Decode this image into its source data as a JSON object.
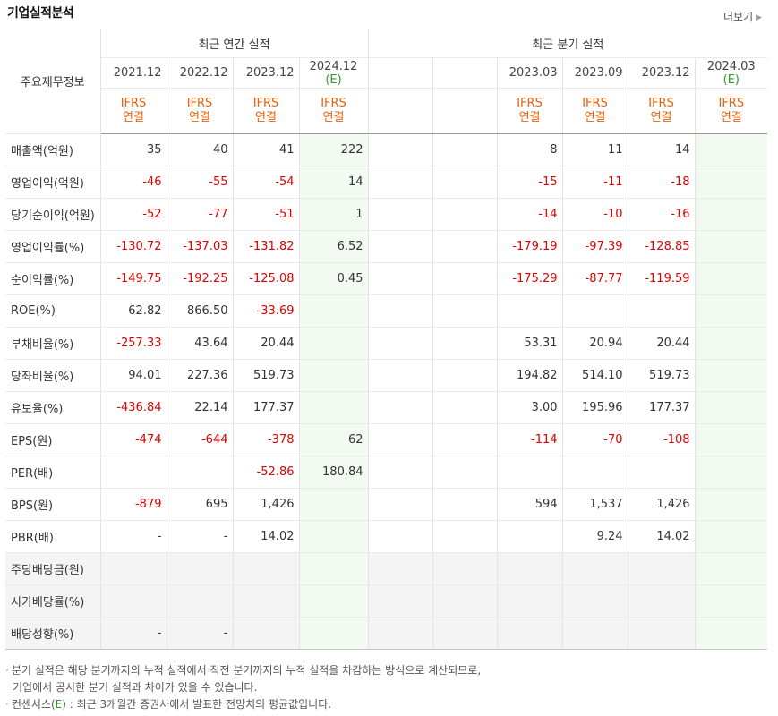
{
  "title": "기업실적분석",
  "more_link": "더보기",
  "row_header_label": "주요재무정보",
  "group_annual": "최근 연간 실적",
  "group_quarter": "최근 분기 실적",
  "annual_periods": [
    "2021.12",
    "2022.12",
    "2023.12",
    "2024.12"
  ],
  "annual_est_mark": "(E)",
  "quarter_periods": [
    "",
    "",
    "2023.03",
    "2023.09",
    "2023.12",
    "2024.03"
  ],
  "quarter_est_mark": "(E)",
  "ifrs_label": "IFRS",
  "ifrs_sub": "연결",
  "rows": [
    {
      "label": "매출액(억원)",
      "annual": [
        "35",
        "40",
        "41",
        "222"
      ],
      "quarter": [
        "",
        "",
        "8",
        "11",
        "14",
        ""
      ]
    },
    {
      "label": "영업이익(억원)",
      "annual": [
        "-46",
        "-55",
        "-54",
        "14"
      ],
      "quarter": [
        "",
        "",
        "-15",
        "-11",
        "-18",
        ""
      ]
    },
    {
      "label": "당기순이익(억원)",
      "annual": [
        "-52",
        "-77",
        "-51",
        "1"
      ],
      "quarter": [
        "",
        "",
        "-14",
        "-10",
        "-16",
        ""
      ]
    },
    {
      "label": "영업이익률(%)",
      "annual": [
        "-130.72",
        "-137.03",
        "-131.82",
        "6.52"
      ],
      "quarter": [
        "",
        "",
        "-179.19",
        "-97.39",
        "-128.85",
        ""
      ]
    },
    {
      "label": "순이익률(%)",
      "annual": [
        "-149.75",
        "-192.25",
        "-125.08",
        "0.45"
      ],
      "quarter": [
        "",
        "",
        "-175.29",
        "-87.77",
        "-119.59",
        ""
      ]
    },
    {
      "label": "ROE(%)",
      "annual": [
        "62.82",
        "866.50",
        "-33.69",
        ""
      ],
      "quarter": [
        "",
        "",
        "",
        "",
        "",
        ""
      ]
    },
    {
      "label": "부채비율(%)",
      "annual": [
        "-257.33",
        "43.64",
        "20.44",
        ""
      ],
      "quarter": [
        "",
        "",
        "53.31",
        "20.94",
        "20.44",
        ""
      ]
    },
    {
      "label": "당좌비율(%)",
      "annual": [
        "94.01",
        "227.36",
        "519.73",
        ""
      ],
      "quarter": [
        "",
        "",
        "194.82",
        "514.10",
        "519.73",
        ""
      ]
    },
    {
      "label": "유보율(%)",
      "annual": [
        "-436.84",
        "22.14",
        "177.37",
        ""
      ],
      "quarter": [
        "",
        "",
        "3.00",
        "195.96",
        "177.37",
        ""
      ]
    },
    {
      "label": "EPS(원)",
      "annual": [
        "-474",
        "-644",
        "-378",
        "62"
      ],
      "quarter": [
        "",
        "",
        "-114",
        "-70",
        "-108",
        ""
      ]
    },
    {
      "label": "PER(배)",
      "annual": [
        "",
        "",
        "-52.86",
        "180.84"
      ],
      "quarter": [
        "",
        "",
        "",
        "",
        "",
        ""
      ]
    },
    {
      "label": "BPS(원)",
      "annual": [
        "-879",
        "695",
        "1,426",
        ""
      ],
      "quarter": [
        "",
        "",
        "594",
        "1,537",
        "1,426",
        ""
      ]
    },
    {
      "label": "PBR(배)",
      "annual": [
        "-",
        "-",
        "14.02",
        ""
      ],
      "quarter": [
        "",
        "",
        "",
        "9.24",
        "14.02",
        ""
      ]
    },
    {
      "label": "주당배당금(원)",
      "annual": [
        "",
        "",
        "",
        ""
      ],
      "quarter": [
        "",
        "",
        "",
        "",
        "",
        ""
      ]
    },
    {
      "label": "시가배당률(%)",
      "annual": [
        "",
        "",
        "",
        ""
      ],
      "quarter": [
        "",
        "",
        "",
        "",
        "",
        ""
      ]
    },
    {
      "label": "배당성향(%)",
      "annual": [
        "-",
        "-",
        "",
        ""
      ],
      "quarter": [
        "",
        "",
        "",
        "",
        "",
        ""
      ]
    }
  ],
  "notes": {
    "line1": "분기 실적은 해당 분기까지의 누적 실적에서 직전 분기까지의 누적 실적을 차감하는 방식으로 계산되므로,",
    "line2": "기업에서 공시한 분기 실적과 차이가 있을 수 있습니다.",
    "line3_prefix": "컨센서스(",
    "line3_e": "E",
    "line3_suffix": ") : 최근 3개월간 증권사에서 발표한 전망치의 평균값입니다."
  },
  "colors": {
    "negative": "#e00000",
    "ifrs": "#e8600a",
    "estimate": "#2e9a2e",
    "estimate_bg": "#f2faf2"
  }
}
